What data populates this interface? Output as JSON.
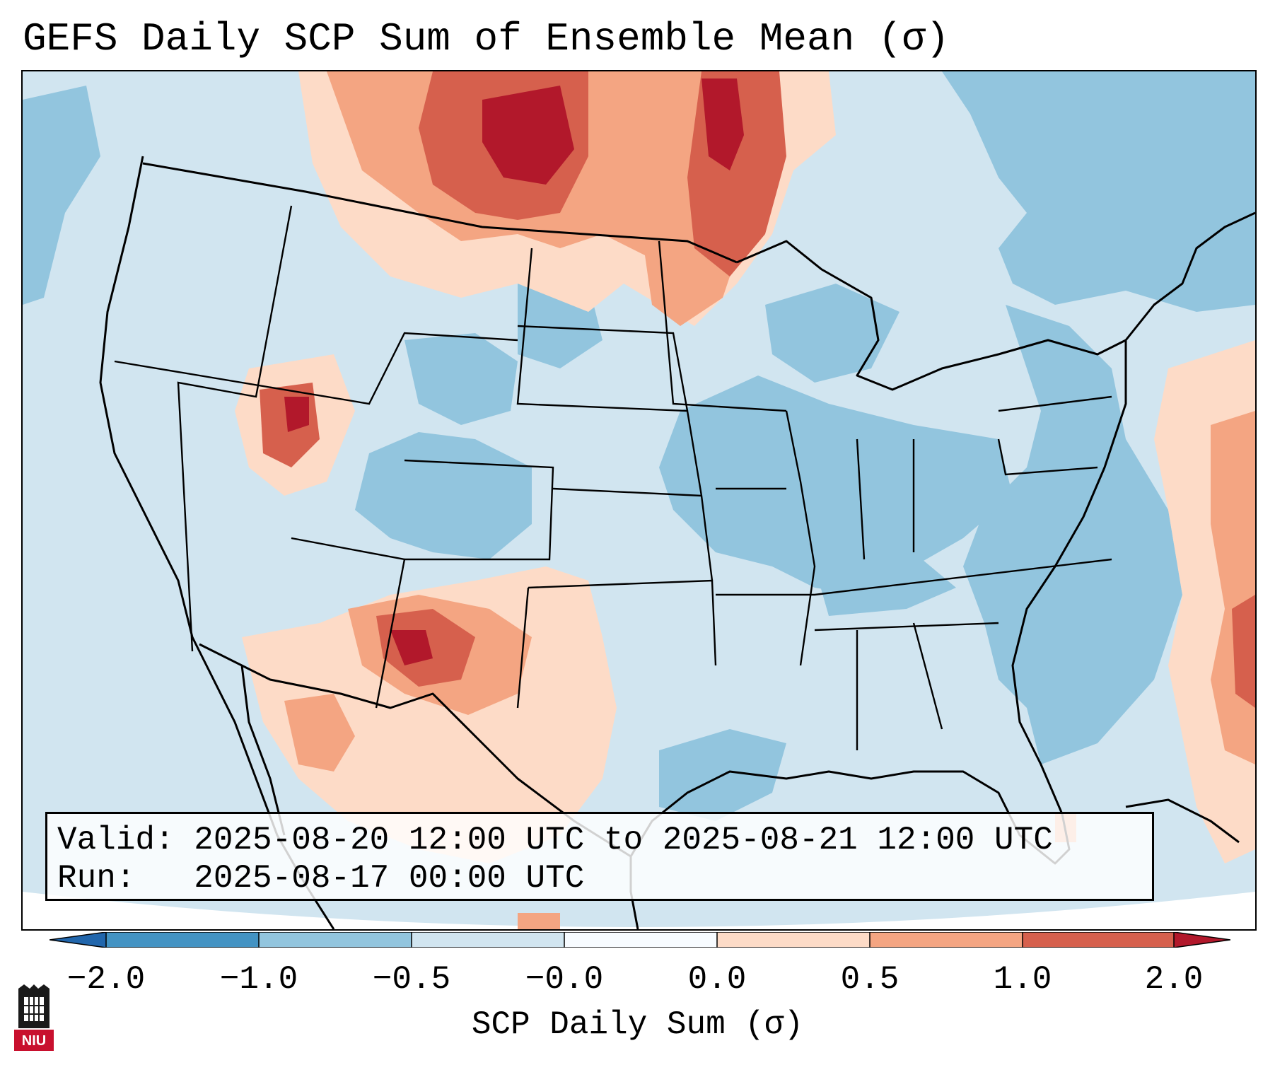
{
  "title": "GEFS Daily SCP Sum of Ensemble Mean (σ)",
  "info_box": {
    "valid_line": "Valid: 2025-08-20 12:00 UTC to 2025-08-21 12:00 UTC",
    "run_line": "Run:   2025-08-17 00:00 UTC"
  },
  "colorbar": {
    "label": "SCP Daily Sum (σ)",
    "tick_labels": [
      "−2.0",
      "−1.0",
      "−0.5",
      "−0.0",
      "0.0",
      "0.5",
      "1.0",
      "2.0"
    ],
    "bin_colors": [
      "#4393c3",
      "#92c5de",
      "#d1e5f0",
      "#f7fbff",
      "#fddbc7",
      "#f4a582",
      "#d6604d",
      "#b2182b"
    ],
    "extend_low_color": "#2166ac",
    "extend_high_color": "#b2182b"
  },
  "map": {
    "background_color": "#d1e5f0",
    "coastline_color": "#000000",
    "anomaly_regions": [
      {
        "name": "north-plains-canada",
        "value": 2.0
      },
      {
        "name": "northern-minnesota",
        "value": 1.2
      },
      {
        "name": "northern-utah",
        "value": 1.5
      },
      {
        "name": "new-mexico",
        "value": 1.6
      },
      {
        "name": "texas-and-north-mexico",
        "value": 0.3
      },
      {
        "name": "east-coast-atlantic",
        "value": -0.7
      },
      {
        "name": "northeast-canada",
        "value": -0.6
      },
      {
        "name": "midwest",
        "value": -0.6
      },
      {
        "name": "colorado",
        "value": -0.6
      },
      {
        "name": "western-atlantic",
        "value": 1.5
      }
    ]
  },
  "logo": {
    "icon": "niu-logo-icon",
    "text": "NIU"
  }
}
